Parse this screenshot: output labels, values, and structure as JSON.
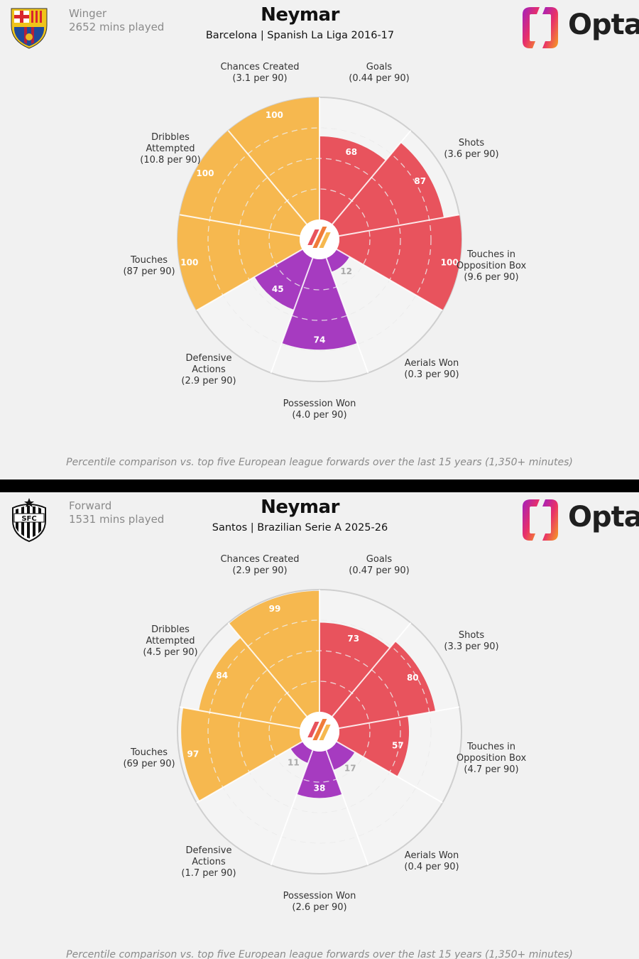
{
  "colors": {
    "attacking": "#e8535d",
    "possession": "#f6b84f",
    "defending": "#a63bc0",
    "background": "#f1f1f1",
    "ring_bg": "#f4f4f4"
  },
  "brand": {
    "name": "Opta"
  },
  "footnote": "Percentile comparison vs. top five European league forwards over the last 15 years (1,350+ minutes)",
  "panels": [
    {
      "crest_icon": "barcelona-crest-icon",
      "role": "Winger",
      "minutes": "2652 mins played",
      "player": "Neymar",
      "subtitle": "Barcelona | Spanish La Liga 2016-17"
    },
    {
      "crest_icon": "santos-crest-icon",
      "role": "Forward",
      "minutes": "1531 mins played",
      "player": "Neymar",
      "subtitle": "Santos | Brazilian Serie A 2025-26"
    }
  ],
  "chart_data": [
    {
      "type": "polar-bar",
      "title": "Neymar — Barcelona | Spanish La Liga 2016-17",
      "range": [
        0,
        100
      ],
      "categories": [
        {
          "name": "Goals",
          "per90": "(0.44 per 90)",
          "value": 68,
          "group": "attacking"
        },
        {
          "name": "Shots",
          "per90": "(3.6 per 90)",
          "value": 87,
          "group": "attacking"
        },
        {
          "name": "Touches in Opposition Box",
          "per90": "(9.6 per 90)",
          "value": 100,
          "group": "attacking"
        },
        {
          "name": "Aerials Won",
          "per90": "(0.3 per 90)",
          "value": 12,
          "group": "defending"
        },
        {
          "name": "Possession Won",
          "per90": "(4.0 per 90)",
          "value": 74,
          "group": "defending"
        },
        {
          "name": "Defensive Actions",
          "per90": "(2.9 per 90)",
          "value": 45,
          "group": "defending"
        },
        {
          "name": "Touches",
          "per90": "(87 per 90)",
          "value": 100,
          "group": "possession"
        },
        {
          "name": "Dribbles Attempted",
          "per90": "(10.8 per 90)",
          "value": 100,
          "group": "possession"
        },
        {
          "name": "Chances Created",
          "per90": "(3.1 per 90)",
          "value": 100,
          "group": "possession"
        }
      ]
    },
    {
      "type": "polar-bar",
      "title": "Neymar — Santos | Brazilian Serie A 2025-26",
      "range": [
        0,
        100
      ],
      "categories": [
        {
          "name": "Goals",
          "per90": "(0.47 per 90)",
          "value": 73,
          "group": "attacking"
        },
        {
          "name": "Shots",
          "per90": "(3.3 per 90)",
          "value": 80,
          "group": "attacking"
        },
        {
          "name": "Touches in Opposition Box",
          "per90": "(4.7 per 90)",
          "value": 57,
          "group": "attacking"
        },
        {
          "name": "Aerials Won",
          "per90": "(0.4 per 90)",
          "value": 17,
          "group": "defending"
        },
        {
          "name": "Possession Won",
          "per90": "(2.6 per 90)",
          "value": 38,
          "group": "defending"
        },
        {
          "name": "Defensive Actions",
          "per90": "(1.7 per 90)",
          "value": 11,
          "group": "defending"
        },
        {
          "name": "Touches",
          "per90": "(69 per 90)",
          "value": 97,
          "group": "possession"
        },
        {
          "name": "Dribbles Attempted",
          "per90": "(4.5 per 90)",
          "value": 84,
          "group": "possession"
        },
        {
          "name": "Chances Created",
          "per90": "(2.9 per 90)",
          "value": 99,
          "group": "possession"
        }
      ]
    }
  ]
}
